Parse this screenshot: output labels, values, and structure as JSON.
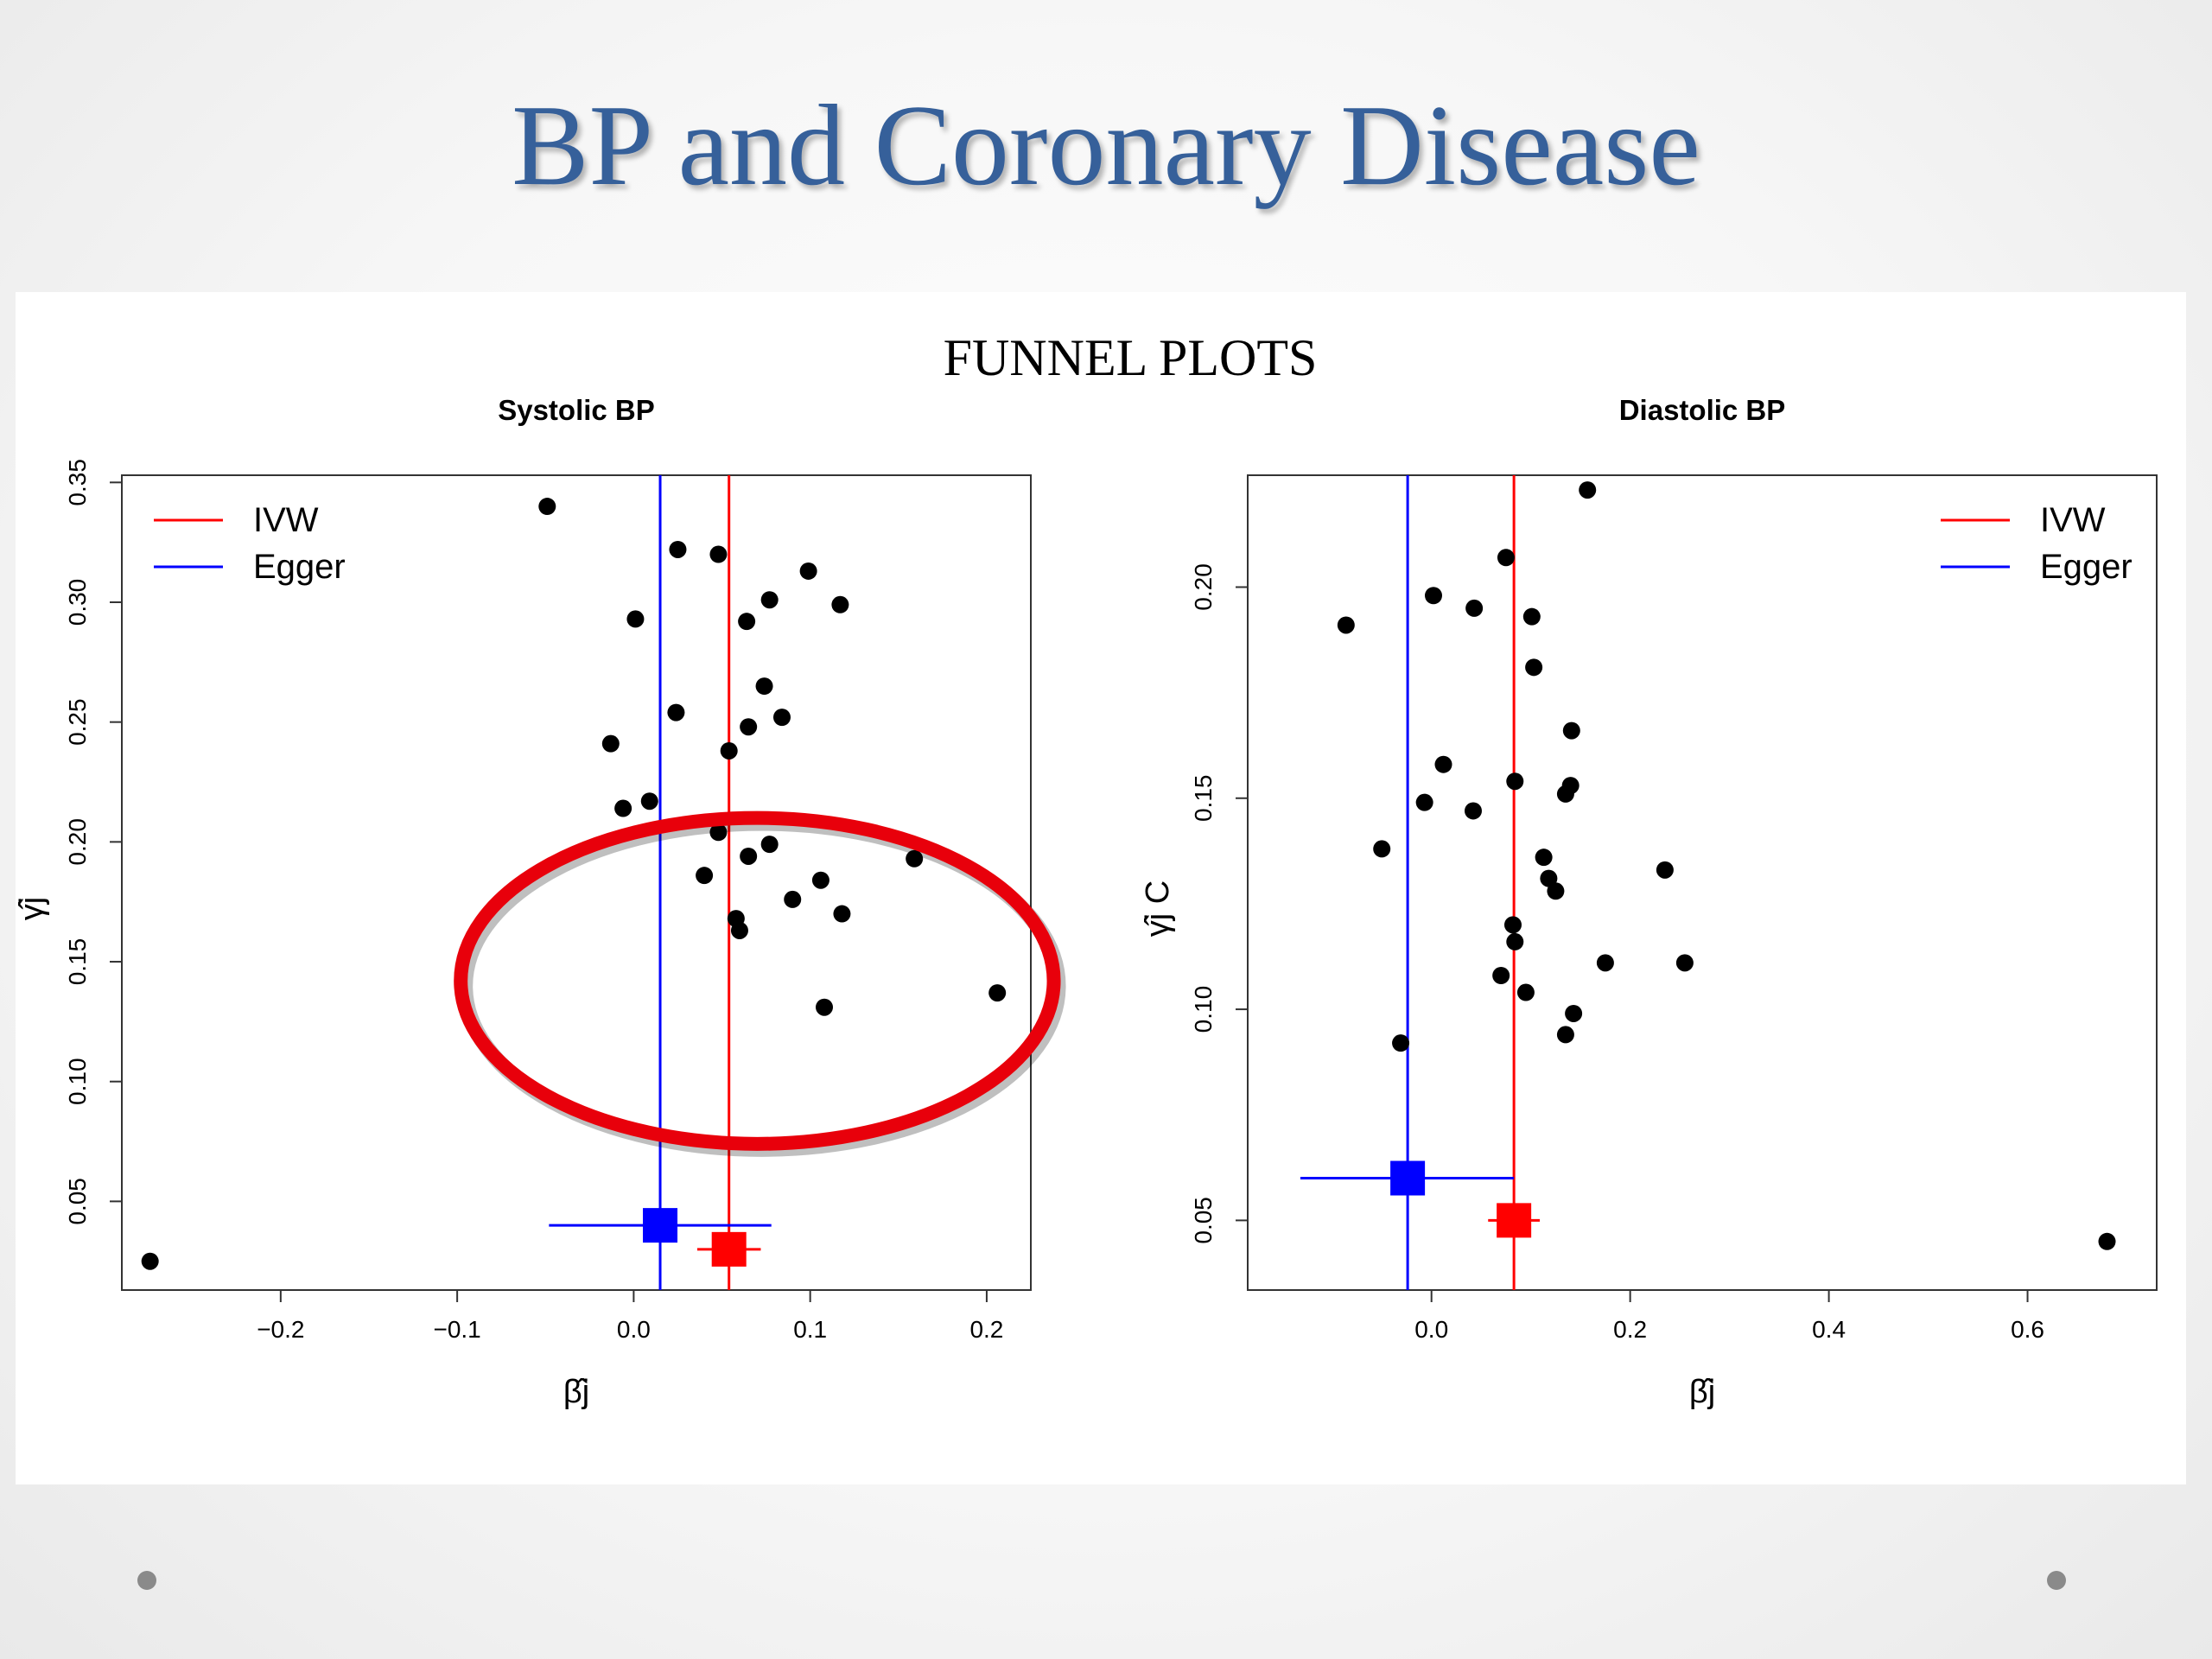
{
  "slide": {
    "title": "BP and Coronary Disease",
    "figure_caption": "FUNNEL PLOTS"
  },
  "colors": {
    "title": "#36609a",
    "ivw": "#ff0000",
    "egger": "#0000ff",
    "points": "#000000",
    "highlight_ellipse": "#e8000b"
  },
  "chart_data": [
    {
      "type": "scatter",
      "title": "Systolic BP",
      "xlabel": "β̂j",
      "ylabel": "γ̂j",
      "xlim": [
        -0.29,
        0.225
      ],
      "ylim": [
        0.013,
        0.353
      ],
      "xticks": [
        -0.2,
        -0.1,
        0.0,
        0.1,
        0.2
      ],
      "xtick_labels": [
        "−0.2",
        "−0.1",
        "0.0",
        "0.1",
        "0.2"
      ],
      "yticks": [
        0.05,
        0.1,
        0.15,
        0.2,
        0.25,
        0.3,
        0.35
      ],
      "ytick_labels": [
        "0.05",
        "0.10",
        "0.15",
        "0.20",
        "0.25",
        "0.30",
        "0.35"
      ],
      "legend": {
        "position": "top-left",
        "entries": [
          "IVW",
          "Egger"
        ]
      },
      "points": [
        {
          "x": -0.049,
          "y": 0.34
        },
        {
          "x": 0.025,
          "y": 0.322
        },
        {
          "x": 0.048,
          "y": 0.32
        },
        {
          "x": 0.099,
          "y": 0.313
        },
        {
          "x": 0.117,
          "y": 0.299
        },
        {
          "x": 0.077,
          "y": 0.301
        },
        {
          "x": 0.064,
          "y": 0.292
        },
        {
          "x": 0.001,
          "y": 0.293
        },
        {
          "x": 0.074,
          "y": 0.265
        },
        {
          "x": 0.084,
          "y": 0.252
        },
        {
          "x": 0.024,
          "y": 0.254
        },
        {
          "x": 0.065,
          "y": 0.248
        },
        {
          "x": -0.013,
          "y": 0.241
        },
        {
          "x": 0.054,
          "y": 0.238
        },
        {
          "x": 0.009,
          "y": 0.217
        },
        {
          "x": -0.006,
          "y": 0.214
        },
        {
          "x": 0.048,
          "y": 0.204
        },
        {
          "x": 0.077,
          "y": 0.199
        },
        {
          "x": 0.065,
          "y": 0.194
        },
        {
          "x": 0.159,
          "y": 0.193
        },
        {
          "x": 0.04,
          "y": 0.186
        },
        {
          "x": 0.106,
          "y": 0.184
        },
        {
          "x": 0.09,
          "y": 0.176
        },
        {
          "x": 0.118,
          "y": 0.17
        },
        {
          "x": 0.058,
          "y": 0.168
        },
        {
          "x": 0.06,
          "y": 0.163
        },
        {
          "x": 0.108,
          "y": 0.131
        },
        {
          "x": 0.206,
          "y": 0.137
        },
        {
          "x": -0.274,
          "y": 0.025
        }
      ],
      "ivw": {
        "estimate": 0.054,
        "ci": [
          0.036,
          0.072
        ],
        "marker_y": 0.03
      },
      "egger": {
        "estimate": 0.015,
        "ci": [
          -0.048,
          0.078
        ],
        "marker_y": 0.04
      },
      "highlight": {
        "shape": "ellipse",
        "cx": 0.07,
        "cy": 0.142,
        "rx": 0.168,
        "ry": 0.068
      }
    },
    {
      "type": "scatter",
      "title": "Diastolic BP",
      "xlabel": "β̂j",
      "ylabel": "γ̂j",
      "ylabel_superscript": "C",
      "xlim": [
        -0.185,
        0.73
      ],
      "ylim": [
        0.0335,
        0.2265
      ],
      "xticks": [
        0.0,
        0.2,
        0.4,
        0.6
      ],
      "xtick_labels": [
        "0.0",
        "0.2",
        "0.4",
        "0.6"
      ],
      "yticks": [
        0.05,
        0.1,
        0.15,
        0.2
      ],
      "ytick_labels": [
        "0.05",
        "0.10",
        "0.15",
        "0.20"
      ],
      "legend": {
        "position": "top-right",
        "entries": [
          "IVW",
          "Egger"
        ]
      },
      "points": [
        {
          "x": 0.157,
          "y": 0.223
        },
        {
          "x": 0.075,
          "y": 0.207
        },
        {
          "x": 0.002,
          "y": 0.198
        },
        {
          "x": 0.043,
          "y": 0.195
        },
        {
          "x": 0.101,
          "y": 0.193
        },
        {
          "x": -0.086,
          "y": 0.191
        },
        {
          "x": 0.103,
          "y": 0.181
        },
        {
          "x": 0.141,
          "y": 0.166
        },
        {
          "x": 0.012,
          "y": 0.158
        },
        {
          "x": 0.084,
          "y": 0.154
        },
        {
          "x": 0.14,
          "y": 0.153
        },
        {
          "x": 0.135,
          "y": 0.151
        },
        {
          "x": -0.007,
          "y": 0.149
        },
        {
          "x": 0.042,
          "y": 0.147
        },
        {
          "x": -0.05,
          "y": 0.138
        },
        {
          "x": 0.113,
          "y": 0.136
        },
        {
          "x": 0.235,
          "y": 0.133
        },
        {
          "x": 0.118,
          "y": 0.131
        },
        {
          "x": 0.125,
          "y": 0.128
        },
        {
          "x": 0.082,
          "y": 0.12
        },
        {
          "x": 0.084,
          "y": 0.116
        },
        {
          "x": 0.175,
          "y": 0.111
        },
        {
          "x": 0.255,
          "y": 0.111
        },
        {
          "x": 0.07,
          "y": 0.108
        },
        {
          "x": 0.095,
          "y": 0.104
        },
        {
          "x": 0.143,
          "y": 0.099
        },
        {
          "x": 0.135,
          "y": 0.094
        },
        {
          "x": -0.031,
          "y": 0.092
        },
        {
          "x": 0.68,
          "y": 0.045
        }
      ],
      "ivw": {
        "estimate": 0.083,
        "ci": [
          0.057,
          0.109
        ],
        "marker_y": 0.05
      },
      "egger": {
        "estimate": -0.024,
        "ci": [
          -0.132,
          0.083
        ],
        "marker_y": 0.06
      }
    }
  ]
}
